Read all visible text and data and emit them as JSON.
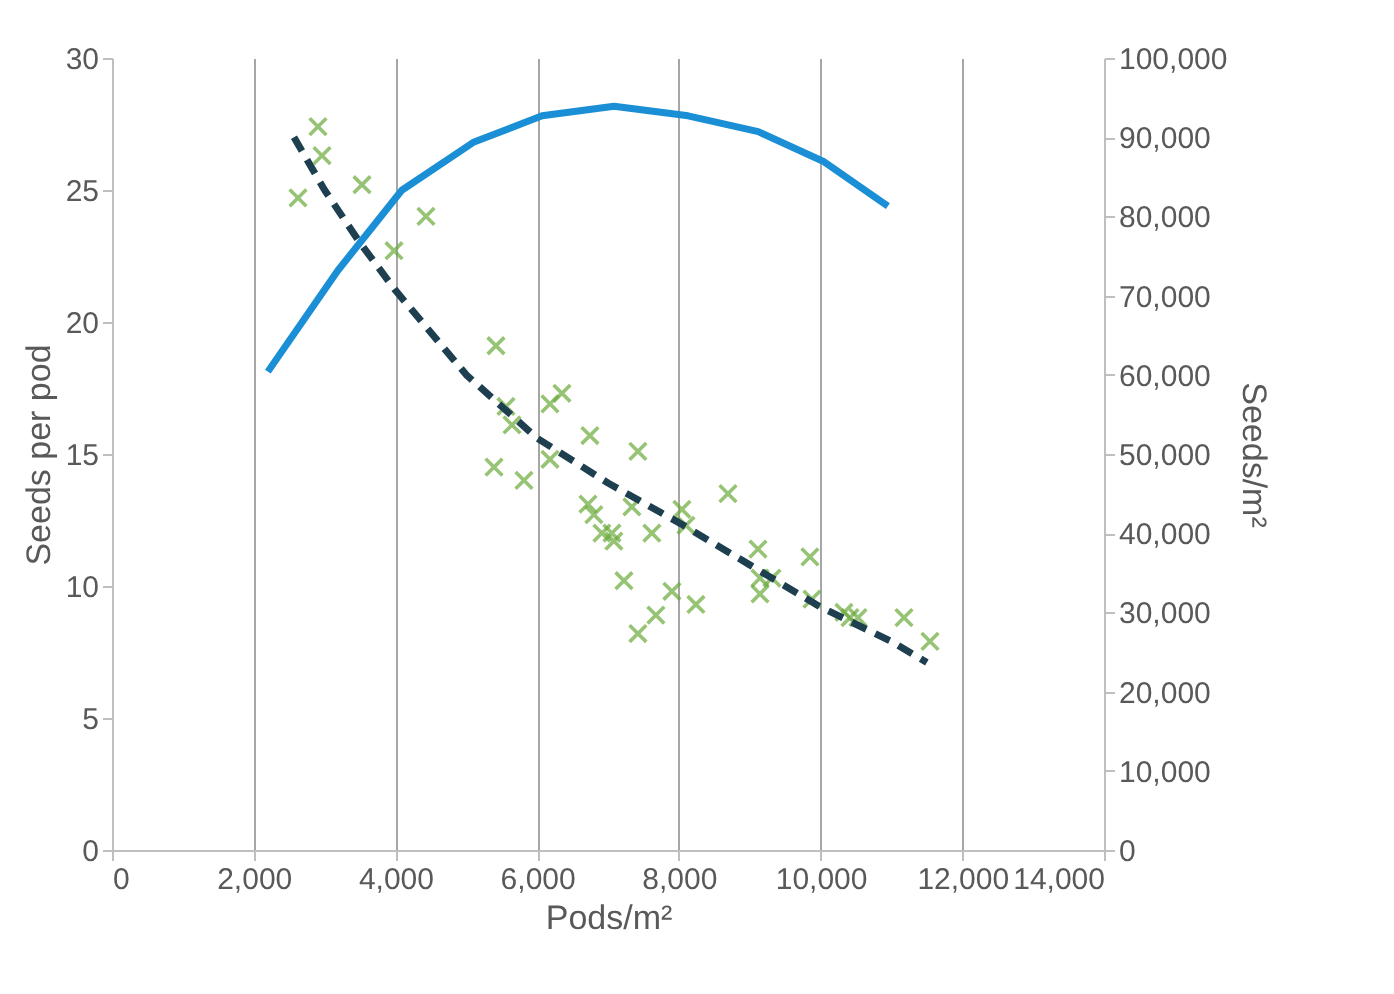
{
  "chart_data": {
    "type": "scatter",
    "xlabel": "Pods/m²",
    "ylabel": "Seeds per pod",
    "y2label": "Seeds/m²",
    "xlim": [
      0,
      14000
    ],
    "xticks": [
      0,
      {
        "value": 2000,
        "label": "2,000"
      },
      {
        "value": 4000,
        "label": "4,000"
      },
      {
        "value": 6000,
        "label": "6,000"
      },
      {
        "value": 8000,
        "label": "8,000"
      },
      {
        "value": 10000,
        "label": "10,000"
      },
      {
        "value": 12000,
        "label": "12,000"
      },
      {
        "value": 14000,
        "label": "14,000"
      }
    ],
    "ylim": [
      0,
      30
    ],
    "yticks": [
      0,
      5,
      10,
      15,
      20,
      25,
      30
    ],
    "y2lim": [
      0,
      100000
    ],
    "y2ticks": [
      0,
      {
        "value": 10000,
        "label": "10,000"
      },
      {
        "value": 20000,
        "label": "20,000"
      },
      {
        "value": 30000,
        "label": "30,000"
      },
      {
        "value": 40000,
        "label": "40,000"
      },
      {
        "value": 50000,
        "label": "50,000"
      },
      {
        "value": 60000,
        "label": "60,000"
      },
      {
        "value": 70000,
        "label": "70,000"
      },
      {
        "value": 80000,
        "label": "80,000"
      },
      {
        "value": 90000,
        "label": "90,000"
      },
      {
        "value": 100000,
        "label": "100,000"
      }
    ],
    "grid": "x",
    "series": [
      {
        "marker": "cross",
        "color": "#6aaa3a",
        "x": [
          2625,
          2907,
          2964,
          3528,
          3980,
          4431,
          5419,
          5560,
          5645,
          5391,
          5814,
          6181,
          6350,
          6181,
          6745,
          6717,
          6801,
          6914,
          7055,
          7083,
          7422,
          7337,
          7225,
          7422,
          7619,
          7676,
          7902,
          8043,
          8100,
          8241,
          8693,
          9117,
          9145,
          9314,
          9145,
          9850,
          9878,
          10330,
          10415,
          10528,
          11177,
          11544
        ],
        "values": [
          24.7,
          27.4,
          26.3,
          25.2,
          22.7,
          24.0,
          19.1,
          16.8,
          16.1,
          14.5,
          14.0,
          14.8,
          17.3,
          16.9,
          15.7,
          13.1,
          12.7,
          12.0,
          12.0,
          11.7,
          15.1,
          13.0,
          10.2,
          8.2,
          12.0,
          8.9,
          9.8,
          12.9,
          12.3,
          9.3,
          13.5,
          11.4,
          10.3,
          10.3,
          9.7,
          11.1,
          9.5,
          9.0,
          8.8,
          8.8,
          8.8,
          7.9
        ]
      },
      {
        "type": "line",
        "line_style": "dashed",
        "marker": "none",
        "color": "#1d3f4f",
        "x": [
          2568,
          3000,
          3500,
          4000,
          5000,
          6000,
          7000,
          8000,
          9000,
          10000,
          11000,
          11500
        ],
        "values": [
          27.0,
          25.0,
          23.0,
          21.2,
          18.0,
          15.6,
          13.9,
          12.4,
          10.8,
          9.2,
          7.9,
          7.1
        ]
      },
      {
        "type": "line",
        "line_style": "solid",
        "marker": "none",
        "axis": "y2",
        "color": "#1a8fd6",
        "x": [
          2200,
          3190,
          4090,
          5110,
          6070,
          7085,
          8130,
          9120,
          10050,
          10950
        ],
        "values": [
          60400,
          73200,
          83300,
          89400,
          92700,
          93900,
          92700,
          90700,
          86900,
          81300
        ]
      }
    ]
  }
}
